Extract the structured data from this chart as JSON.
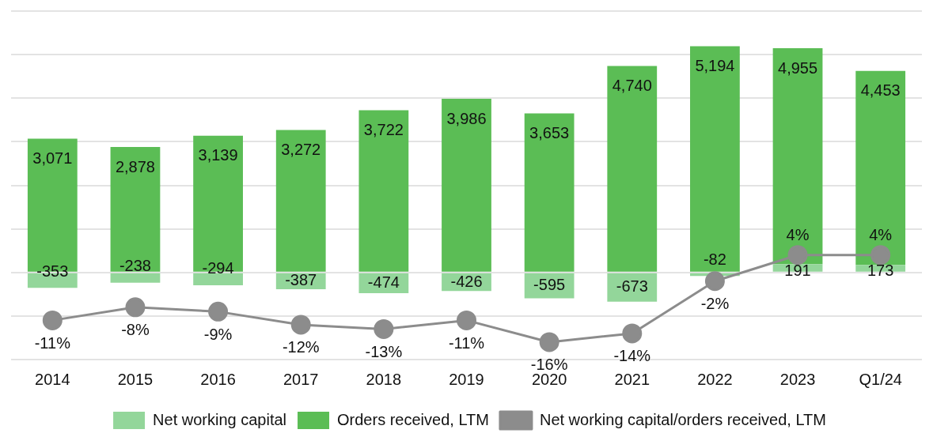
{
  "chart_data": {
    "type": "bar",
    "stacked": true,
    "categories": [
      "2014",
      "2015",
      "2016",
      "2017",
      "2018",
      "2019",
      "2020",
      "2021",
      "2022",
      "2023",
      "Q1/24"
    ],
    "series": [
      {
        "name": "Net working capital",
        "color": "#93d69a",
        "values": [
          -353,
          -238,
          -294,
          -387,
          -474,
          -426,
          -595,
          -673,
          -82,
          191,
          173
        ]
      },
      {
        "name": "Orders received, LTM",
        "color": "#5bbd55",
        "values": [
          3071,
          2878,
          3139,
          3272,
          3722,
          3986,
          3653,
          4740,
          5194,
          4955,
          4453
        ],
        "value_labels": [
          "3,071",
          "2,878",
          "3,139",
          "3,272",
          "3,722",
          "3,986",
          "3,653",
          "4,740",
          "5,194",
          "4,955",
          "4,453"
        ]
      },
      {
        "name": "Net working capital/orders received, LTM",
        "type": "line",
        "axis": "y2",
        "color": "#8c8c8c",
        "values": [
          -11,
          -8,
          -9,
          -12,
          -13,
          -11,
          -16,
          -14,
          -2,
          4,
          4
        ],
        "value_labels": [
          "-11%",
          "-8%",
          "-9%",
          "-12%",
          "-13%",
          "-11%",
          "-16%",
          "-14%",
          "-2%",
          "4%",
          "4%"
        ]
      }
    ],
    "ylim": [
      -2000,
      6000
    ],
    "yticks": [
      {
        "value": -2000,
        "label": null
      },
      {
        "value": -1000,
        "label": null
      },
      {
        "value": 0,
        "label": null
      },
      {
        "value": 1000,
        "label": null
      },
      {
        "value": 2000,
        "label": null
      },
      {
        "value": 3000,
        "label": null
      },
      {
        "value": 4000,
        "label": null
      },
      {
        "value": 5000,
        "label": null
      },
      {
        "value": 6000,
        "label": null
      }
    ],
    "y2lim": [
      -20,
      60
    ],
    "tick_labels": "x",
    "grid": "y",
    "legend": "bottom",
    "marker": "circle",
    "line_style": "solid",
    "data_labels": true
  }
}
